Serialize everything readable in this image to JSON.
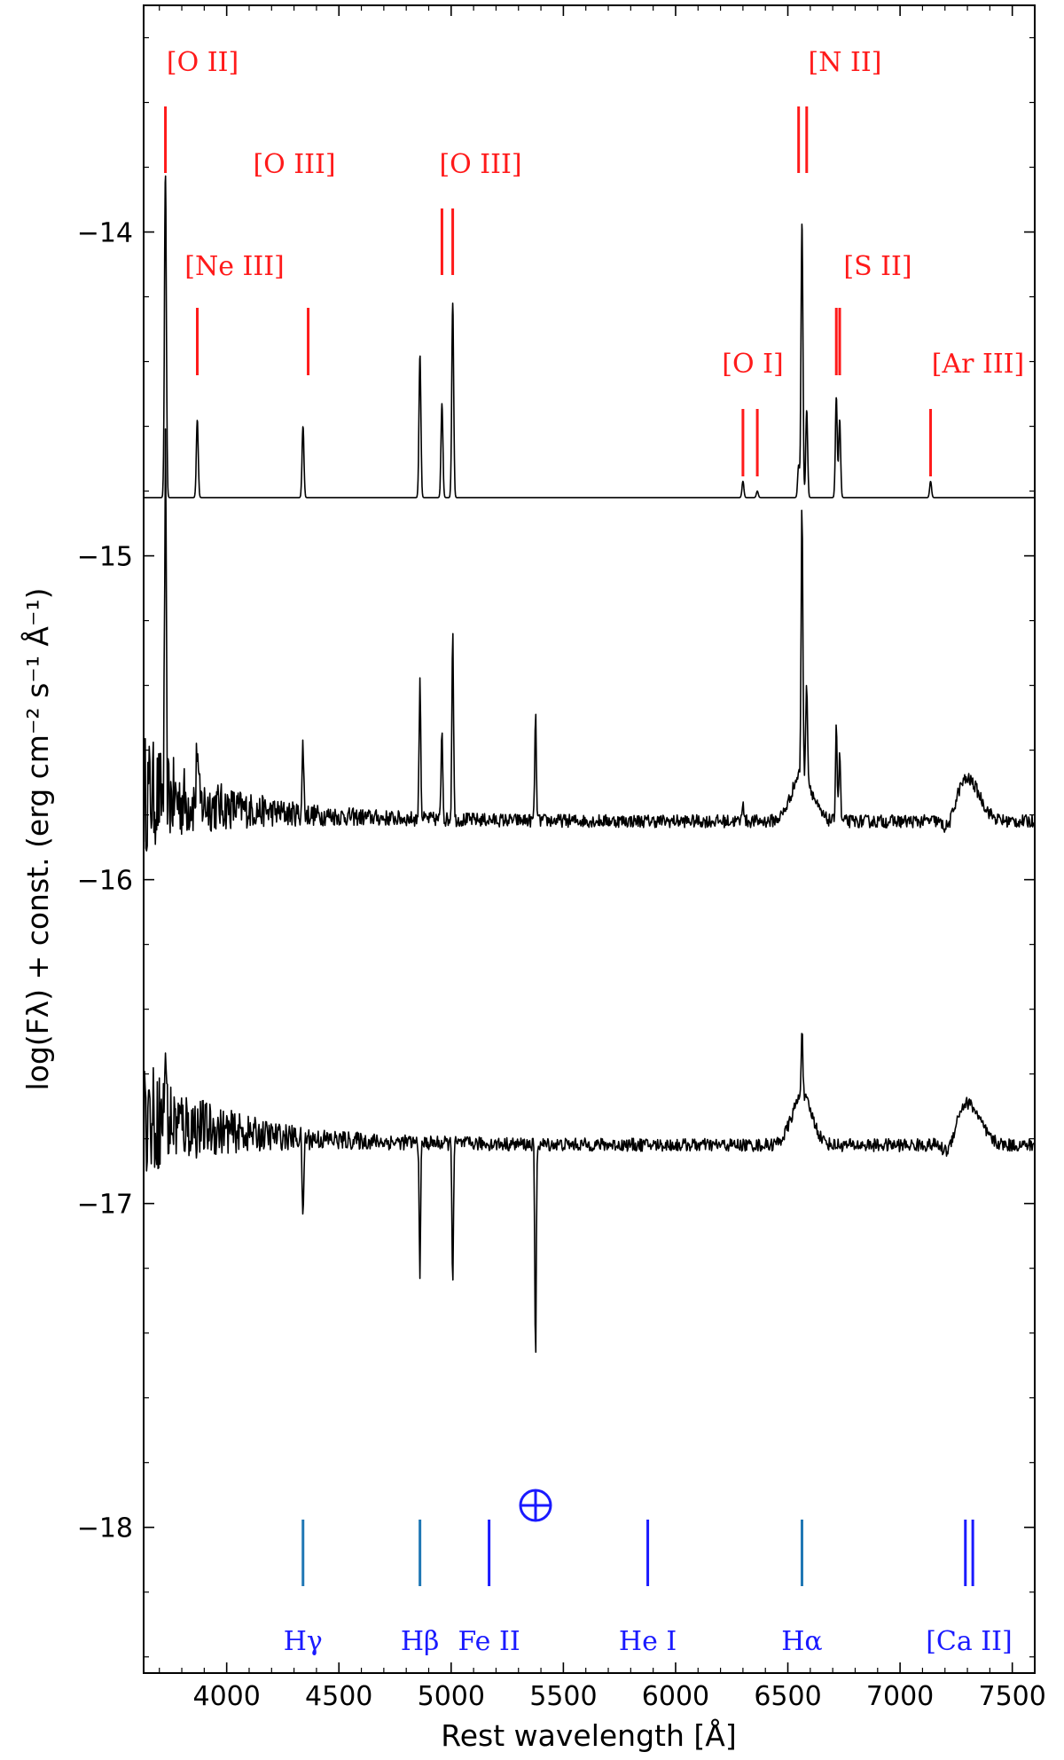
{
  "chart_data": {
    "type": "line",
    "xlabel": "Rest wavelength [Å]",
    "ylabel": "log(Fλ) + const. (erg cm⁻² s⁻¹ Å⁻¹)",
    "xlim": [
      3630,
      7600
    ],
    "ylim": [
      -18.45,
      -13.3
    ],
    "x_ticks": [
      4000,
      4500,
      5000,
      5500,
      6000,
      6500,
      7000,
      7500
    ],
    "y_ticks": [
      -14,
      -15,
      -16,
      -17,
      -18
    ],
    "colors": {
      "emission": "#ff1a1a",
      "absorption": "#1a1aff",
      "balmer": "#1f77b4",
      "spectrum": "#000000"
    },
    "series": [
      {
        "role": "model",
        "continuum": -14.82,
        "lines": [
          {
            "x": 3727,
            "peak": -13.82
          },
          {
            "x": 3869,
            "peak": -14.58
          },
          {
            "x": 4340,
            "peak": -14.6
          },
          {
            "x": 4861,
            "peak": -14.38
          },
          {
            "x": 4959,
            "peak": -14.53
          },
          {
            "x": 5007,
            "peak": -14.22
          },
          {
            "x": 6300,
            "peak": -14.77
          },
          {
            "x": 6364,
            "peak": -14.8
          },
          {
            "x": 6548,
            "peak": -14.72
          },
          {
            "x": 6563,
            "peak": -13.97
          },
          {
            "x": 6584,
            "peak": -14.55
          },
          {
            "x": 6716,
            "peak": -14.51
          },
          {
            "x": 6731,
            "peak": -14.58
          },
          {
            "x": 7136,
            "peak": -14.77
          }
        ]
      },
      {
        "role": "observed-upper",
        "base": -15.82,
        "lines": [
          {
            "x": 3727,
            "peak": -14.82
          },
          {
            "x": 3869,
            "peak": -15.62
          },
          {
            "x": 4340,
            "peak": -15.6
          },
          {
            "x": 4861,
            "peak": -15.38
          },
          {
            "x": 4959,
            "peak": -15.53
          },
          {
            "x": 5007,
            "peak": -15.22
          },
          {
            "x": 5376,
            "peak": -15.5
          },
          {
            "x": 6300,
            "peak": -15.75
          },
          {
            "x": 6563,
            "peak": -14.97
          },
          {
            "x": 6584,
            "peak": -15.51
          },
          {
            "x": 6716,
            "peak": -15.51
          },
          {
            "x": 6731,
            "peak": -15.6
          }
        ]
      },
      {
        "role": "observed-lower",
        "base": -16.82,
        "lines": [
          {
            "x": 3727,
            "peak": -16.57
          },
          {
            "x": 4340,
            "peak": -17.1
          },
          {
            "x": 4861,
            "peak": -17.22
          },
          {
            "x": 5007,
            "peak": -17.25
          },
          {
            "x": 5376,
            "peak": -17.5
          },
          {
            "x": 6563,
            "peak": -16.6
          }
        ]
      }
    ],
    "emission_lines": [
      {
        "label": "[O II]",
        "ticks": [
          3727
        ]
      },
      {
        "label": "[Ne III]",
        "ticks": [
          3869
        ]
      },
      {
        "label": "[O III]",
        "ticks": [
          4363
        ]
      },
      {
        "label": "[O III]",
        "ticks": [
          4959,
          5007
        ]
      },
      {
        "label": "[O I]",
        "ticks": [
          6300,
          6364
        ]
      },
      {
        "label": "[N II]",
        "ticks": [
          6548,
          6584
        ]
      },
      {
        "label": "[S II]",
        "ticks": [
          6716,
          6731
        ]
      },
      {
        "label": "[Ar III]",
        "ticks": [
          7136
        ]
      }
    ],
    "absorption_lines": [
      {
        "label": "Hγ",
        "ticks": [
          4340
        ]
      },
      {
        "label": "Hβ",
        "ticks": [
          4861
        ]
      },
      {
        "label": "Fe II",
        "ticks": [
          5169
        ]
      },
      {
        "label": "He I",
        "ticks": [
          5876
        ]
      },
      {
        "label": "Hα",
        "ticks": [
          6563
        ]
      },
      {
        "label": "[Ca II]",
        "ticks": [
          7291,
          7324
        ]
      }
    ],
    "telluric_symbol": "⊕"
  }
}
